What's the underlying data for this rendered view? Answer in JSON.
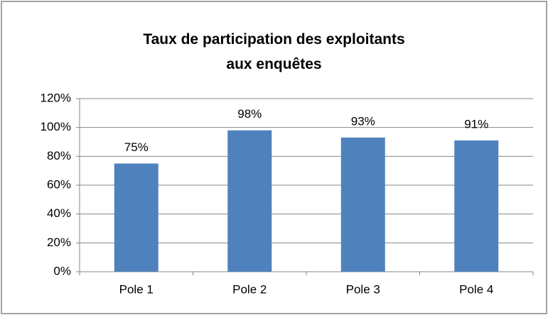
{
  "chart_data": {
    "type": "bar",
    "title": "Taux de participation des exploitants aux enquêtes",
    "categories": [
      "Pole 1",
      "Pole 2",
      "Pole 3",
      "Pole 4"
    ],
    "values": [
      75,
      98,
      93,
      91
    ],
    "value_labels": [
      "75%",
      "98%",
      "93%",
      "91%"
    ],
    "color": "#4f81bd",
    "ylim": [
      0,
      120
    ],
    "yticks": [
      {
        "value": 0,
        "label": "0%"
      },
      {
        "value": 20,
        "label": "20%"
      },
      {
        "value": 40,
        "label": "40%"
      },
      {
        "value": 60,
        "label": "60%"
      },
      {
        "value": 80,
        "label": "80%"
      },
      {
        "value": 100,
        "label": "100%"
      },
      {
        "value": 120,
        "label": "120%"
      }
    ],
    "grid": true
  }
}
